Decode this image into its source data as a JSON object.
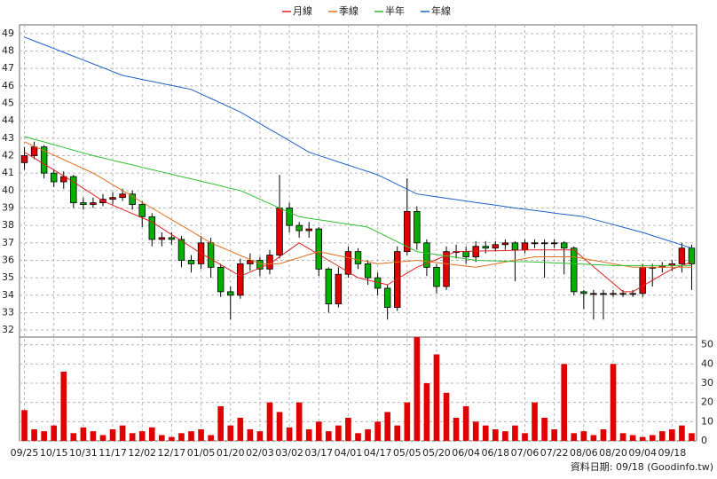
{
  "chart_data": {
    "type": "candlestick",
    "legend": [
      "月線",
      "季線",
      "半年",
      "年線"
    ],
    "footer": "資料日期: 09/18 (Goodinfo.tw)",
    "categories": [
      "09/25",
      null,
      null,
      "10/15",
      null,
      null,
      "10/31",
      null,
      null,
      "11/17",
      null,
      null,
      "12/02",
      null,
      null,
      "12/17",
      null,
      null,
      "01/05",
      null,
      null,
      "01/20",
      null,
      null,
      "02/03",
      null,
      null,
      "03/02",
      null,
      null,
      "03/17",
      null,
      null,
      "04/01",
      null,
      null,
      "04/17",
      null,
      null,
      "05/05",
      null,
      null,
      "05/20",
      null,
      null,
      "06/04",
      null,
      null,
      "06/18",
      null,
      null,
      "07/06",
      null,
      null,
      "07/22",
      null,
      null,
      "08/06",
      null,
      null,
      "08/20",
      null,
      null,
      "09/04",
      null,
      null,
      "09/18",
      null,
      null
    ],
    "open": [
      41.6,
      42,
      42.5,
      41,
      40.5,
      40.8,
      39.3,
      39.2,
      39.3,
      39.5,
      39.6,
      39.8,
      39.2,
      38.5,
      37.2,
      37.3,
      37.2,
      36,
      35.8,
      37,
      35.6,
      34.2,
      34,
      35.8,
      36,
      35.5,
      36.3,
      39,
      38,
      37.7,
      37.8,
      35.5,
      33.5,
      35.2,
      36.5,
      35.8,
      35,
      34.4,
      33.3,
      36.5,
      38.8,
      37,
      35.6,
      34.5,
      36.5,
      36.5,
      36.2,
      36.8,
      36.7,
      36.9,
      37,
      36.6,
      37,
      37,
      37,
      37,
      36.7,
      34.2,
      34.1,
      34.1,
      34.1,
      34.1,
      34.1,
      34.1,
      35.6,
      35.6,
      35.7,
      35.8,
      36.7
    ],
    "high": [
      42.5,
      42.8,
      42.6,
      41.2,
      41.1,
      40.9,
      39.6,
      39.6,
      39.8,
      39.9,
      40.1,
      40,
      39.4,
      38.7,
      37.6,
      37.6,
      37.4,
      36.3,
      37.4,
      37.3,
      35.8,
      34.5,
      36.1,
      36.4,
      36.2,
      36.6,
      40.9,
      39.3,
      38.2,
      38.2,
      37.9,
      35.6,
      35.6,
      36.8,
      36.7,
      36,
      35.3,
      34.6,
      36.8,
      40.7,
      39.1,
      37.2,
      35.8,
      36.8,
      36.9,
      36.8,
      37.1,
      37.1,
      37.1,
      37.2,
      37.1,
      37.2,
      37.2,
      37.2,
      37.2,
      37.1,
      36.8,
      34.3,
      34.3,
      34.3,
      34.3,
      34.3,
      34.3,
      35.8,
      35.8,
      35.9,
      36,
      37,
      36.9
    ],
    "low": [
      41.2,
      41.8,
      40.7,
      40.2,
      40.1,
      39,
      38.9,
      39,
      39.1,
      39.2,
      39.4,
      38.9,
      37.9,
      36.8,
      36.8,
      36.9,
      35.6,
      35.3,
      35.5,
      35,
      33.9,
      32.6,
      33.8,
      35.4,
      35.1,
      35.2,
      36.1,
      37.6,
      37.3,
      37.3,
      35.1,
      33,
      33.3,
      35,
      35.5,
      34.6,
      34,
      32.6,
      33.1,
      36.3,
      36.6,
      35.1,
      34.1,
      34.3,
      36.1,
      35.8,
      35.9,
      36.4,
      36.5,
      36.6,
      34.8,
      36.4,
      36.7,
      35,
      36.7,
      35.2,
      34,
      33.2,
      32.6,
      32.6,
      33.9,
      33.9,
      33.9,
      33.9,
      34.5,
      35.3,
      35.4,
      35.3,
      34.3
    ],
    "close": [
      42,
      42.5,
      41,
      40.5,
      40.8,
      39.3,
      39.2,
      39.3,
      39.5,
      39.6,
      39.8,
      39.2,
      38.5,
      37.2,
      37.3,
      37.2,
      36,
      35.8,
      37,
      35.6,
      34.2,
      34,
      35.8,
      36,
      35.5,
      36.3,
      39,
      38,
      37.7,
      37.8,
      35.5,
      33.5,
      35.2,
      36.5,
      35.8,
      35,
      34.4,
      33.3,
      36.5,
      38.8,
      37,
      35.6,
      34.5,
      36.5,
      36.5,
      36.2,
      36.8,
      36.7,
      36.9,
      37,
      36.6,
      37,
      37,
      37,
      37,
      36.7,
      34.2,
      34.1,
      34.1,
      34.1,
      34.1,
      34.1,
      34.1,
      35.6,
      35.6,
      35.7,
      35.8,
      36.7,
      35.8
    ],
    "up_color": "#e00000",
    "down_color": "#00b000",
    "series": [
      {
        "name": "月線",
        "color": "#e02020",
        "values": [
          42.2,
          41.86,
          41.52,
          41.18,
          40.84,
          40.5,
          40.13,
          39.77,
          39.4,
          39.16,
          38.92,
          38.68,
          38.44,
          38.2,
          37.84,
          37.48,
          37.12,
          36.76,
          36.4,
          36.08,
          35.75,
          35.43,
          35.1,
          35.33,
          35.57,
          35.8,
          36.2,
          36.6,
          37,
          36.67,
          36.33,
          36,
          35.67,
          35.33,
          35,
          34.87,
          34.73,
          34.6,
          34.93,
          35.27,
          35.6,
          35.83,
          36.05,
          36.28,
          36.5,
          36.51,
          36.53,
          36.54,
          36.55,
          36.56,
          36.58,
          36.59,
          36.6,
          36.6,
          36.6,
          36.6,
          36.6,
          36.12,
          35.64,
          35.16,
          34.68,
          34.2,
          34.2,
          34.53,
          34.85,
          35.18,
          35.5,
          35.7,
          35.9
        ]
      },
      {
        "name": "季線",
        "color": "#e07020",
        "values": [
          42.8,
          42.54,
          42.29,
          42.03,
          41.77,
          41.51,
          41.26,
          41,
          40.67,
          40.33,
          40,
          39.67,
          39.33,
          39,
          38.67,
          38.33,
          38,
          37.67,
          37.33,
          37,
          36.76,
          36.52,
          36.28,
          36.04,
          35.8,
          35.8,
          35.8,
          35.98,
          36.15,
          36.33,
          36.5,
          36.38,
          36.27,
          36.15,
          36.03,
          35.92,
          35.8,
          35.85,
          35.9,
          35.95,
          36,
          35.93,
          35.87,
          35.8,
          35.73,
          35.67,
          35.6,
          35.7,
          35.8,
          35.9,
          36,
          36.1,
          36.2,
          36.2,
          36.2,
          36.2,
          36.2,
          36.1,
          36,
          35.9,
          35.8,
          35.7,
          35.6,
          35.6,
          35.6,
          35.6,
          35.6,
          35.6,
          35.6
        ]
      },
      {
        "name": "半年",
        "color": "#30c030",
        "values": [
          43.1,
          42.94,
          42.79,
          42.63,
          42.47,
          42.31,
          42.16,
          42,
          41.87,
          41.73,
          41.6,
          41.47,
          41.33,
          41.2,
          41.07,
          40.93,
          40.8,
          40.67,
          40.53,
          40.4,
          40.27,
          40.13,
          40,
          39.75,
          39.5,
          39.25,
          39,
          38.75,
          38.5,
          38.41,
          38.33,
          38.24,
          38.16,
          38.07,
          37.99,
          37.9,
          37.62,
          37.34,
          37.06,
          36.78,
          36.5,
          36.42,
          36.33,
          36.25,
          36.17,
          36.08,
          36,
          35.98,
          35.97,
          35.95,
          35.93,
          35.92,
          35.9,
          35.88,
          35.85,
          35.83,
          35.8,
          35.78,
          35.75,
          35.73,
          35.7,
          35.7,
          35.7,
          35.7,
          35.7,
          35.7,
          35.7,
          35.7,
          35.7
        ]
      },
      {
        "name": "年線",
        "color": "#2060c8",
        "values": [
          48.8,
          48.58,
          48.36,
          48.14,
          47.92,
          47.7,
          47.48,
          47.26,
          47.04,
          46.82,
          46.6,
          46.49,
          46.37,
          46.26,
          46.14,
          46.03,
          45.91,
          45.8,
          45.54,
          45.28,
          45.02,
          44.76,
          44.5,
          44.17,
          43.84,
          43.51,
          43.19,
          42.86,
          42.53,
          42.2,
          42.01,
          41.83,
          41.64,
          41.46,
          41.27,
          41.09,
          40.9,
          40.63,
          40.35,
          40.08,
          39.8,
          39.72,
          39.64,
          39.56,
          39.48,
          39.4,
          39.32,
          39.24,
          39.16,
          39.08,
          39,
          38.93,
          38.86,
          38.79,
          38.71,
          38.64,
          38.57,
          38.5,
          38.35,
          38.2,
          38.05,
          37.9,
          37.75,
          37.6,
          37.42,
          37.24,
          37.06,
          36.88,
          36.7
        ]
      }
    ],
    "ylim": [
      31.6,
      49.5
    ],
    "yticks": [
      32,
      33,
      34,
      35,
      36,
      37,
      38,
      39,
      40,
      41,
      42,
      43,
      44,
      45,
      46,
      47,
      48,
      49
    ],
    "volume": {
      "color": "#e00000",
      "ylim": [
        0,
        54
      ],
      "yticks": [
        0,
        10,
        20,
        30,
        40,
        50
      ],
      "values": [
        16,
        6,
        5,
        8,
        36,
        4,
        7,
        5,
        3,
        6,
        8,
        4,
        5,
        7,
        3,
        2,
        4,
        5,
        6,
        3,
        18,
        8,
        12,
        6,
        5,
        20,
        15,
        7,
        20,
        6,
        10,
        5,
        8,
        12,
        4,
        6,
        10,
        15,
        8,
        20,
        54,
        30,
        45,
        25,
        12,
        18,
        10,
        8,
        6,
        5,
        8,
        4,
        20,
        12,
        6,
        40,
        4,
        5,
        3,
        6,
        40,
        4,
        3,
        2,
        3,
        5,
        6,
        8,
        4
      ]
    },
    "grid": true
  }
}
